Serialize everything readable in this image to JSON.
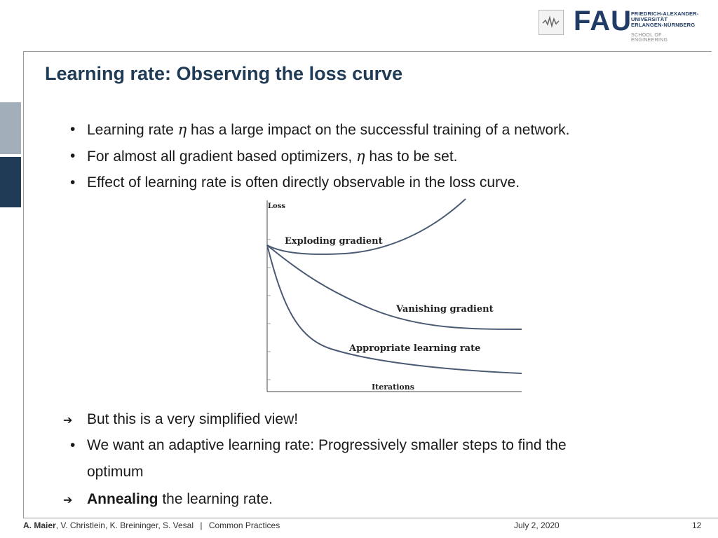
{
  "logo": {
    "short": "FAU",
    "university_lines": [
      "FRIEDRICH-ALEXANDER-",
      "UNIVERSITÄT",
      "ERLANGEN-NÜRNBERG"
    ],
    "school": "SCHOOL OF ENGINEERING"
  },
  "title": "Learning rate: Observing the loss curve",
  "bullets": [
    {
      "marker": "•",
      "parts": [
        {
          "t": "Learning rate "
        },
        {
          "t": "η",
          "style": "eta"
        },
        {
          "t": " has a large impact on the successful training of a network."
        }
      ]
    },
    {
      "marker": "•",
      "parts": [
        {
          "t": "For almost all gradient based optimizers, "
        },
        {
          "t": "η",
          "style": "eta"
        },
        {
          "t": " has to be set."
        }
      ]
    },
    {
      "marker": "•",
      "parts": [
        {
          "t": "Effect of learning rate is often directly observable in the loss curve."
        }
      ]
    }
  ],
  "bullets2": [
    {
      "marker": "➔",
      "parts": [
        {
          "t": "But this is a very simplified view!"
        }
      ]
    },
    {
      "marker": "•",
      "parts": [
        {
          "t": "We want an adaptive learning rate: Progressively smaller steps to find the"
        }
      ]
    },
    {
      "marker": "",
      "parts": [
        {
          "t": "optimum"
        }
      ]
    },
    {
      "marker": "➔",
      "parts": [
        {
          "t": "Annealing",
          "style": "bold"
        },
        {
          "t": " the learning rate."
        }
      ]
    }
  ],
  "chart_data": {
    "type": "line",
    "ylabel": "Loss",
    "xlabel": "Iterations",
    "series": [
      {
        "name": "Exploding gradient"
      },
      {
        "name": "Vanishing gradient"
      },
      {
        "name": "Appropriate learning rate"
      }
    ]
  },
  "footer": {
    "authors_bold": "A. Maier",
    "authors_rest": ", V. Christlein, K. Breininger, S. Vesal",
    "separator": "|",
    "topic": "Common Practices",
    "date": "July 2, 2020",
    "page": "12"
  }
}
